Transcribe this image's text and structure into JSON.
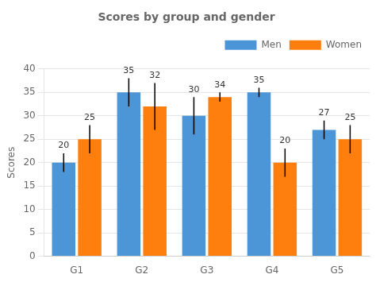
{
  "chart_data": {
    "type": "bar",
    "title": "Scores by group and gender",
    "categories": [
      "G1",
      "G2",
      "G3",
      "G4",
      "G5"
    ],
    "series": [
      {
        "name": "Men",
        "color": "#4C96D7",
        "values": [
          20,
          35,
          30,
          35,
          27
        ],
        "errors": [
          2,
          3,
          4,
          1,
          2
        ]
      },
      {
        "name": "Women",
        "color": "#FF7F0E",
        "values": [
          25,
          32,
          34,
          20,
          25
        ],
        "errors": [
          3,
          5,
          1,
          3,
          3
        ]
      }
    ],
    "ylabel": "Scores",
    "ylim": [
      0,
      40
    ],
    "yticks": [
      0,
      5,
      10,
      15,
      20,
      25,
      30,
      35,
      40
    ],
    "grid": true,
    "legend": "upper right",
    "data_labels": true
  }
}
